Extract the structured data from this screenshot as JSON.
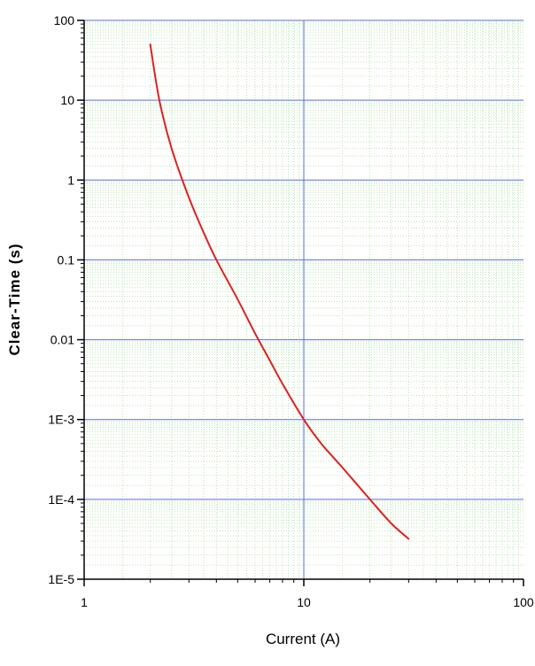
{
  "chart_data": {
    "type": "line",
    "title": "",
    "xlabel": "Current (A)",
    "ylabel": "Clear-Time (s)",
    "x_scale": "log",
    "y_scale": "log",
    "xlim": [
      1,
      100
    ],
    "ylim": [
      1e-05,
      100
    ],
    "x_ticks": [
      {
        "value": 1,
        "label": "1"
      },
      {
        "value": 10,
        "label": "10"
      },
      {
        "value": 100,
        "label": "100"
      }
    ],
    "y_ticks": [
      {
        "value": 1e-05,
        "label": "1E-5"
      },
      {
        "value": 0.0001,
        "label": "1E-4"
      },
      {
        "value": 0.001,
        "label": "1E-3"
      },
      {
        "value": 0.01,
        "label": "0.01"
      },
      {
        "value": 0.1,
        "label": "0.1"
      },
      {
        "value": 1,
        "label": "1"
      },
      {
        "value": 10,
        "label": "10"
      },
      {
        "value": 100,
        "label": "100"
      }
    ],
    "grid": {
      "major": true,
      "minor": true
    },
    "colors": {
      "series": "#e02020",
      "major_grid": "#5a6ee0",
      "minor_grid": "#b8e8b0",
      "axis": "#000000"
    },
    "series": [
      {
        "x": [
          2,
          2.2,
          2.5,
          3,
          3.5,
          4,
          5,
          6,
          7,
          8,
          10,
          12,
          15,
          20,
          25,
          30
        ],
        "y": [
          50,
          10,
          2.5,
          0.6,
          0.22,
          0.1,
          0.032,
          0.012,
          0.0055,
          0.0028,
          0.001,
          0.0005,
          0.00025,
          0.0001,
          5e-05,
          3.2e-05
        ]
      }
    ]
  }
}
